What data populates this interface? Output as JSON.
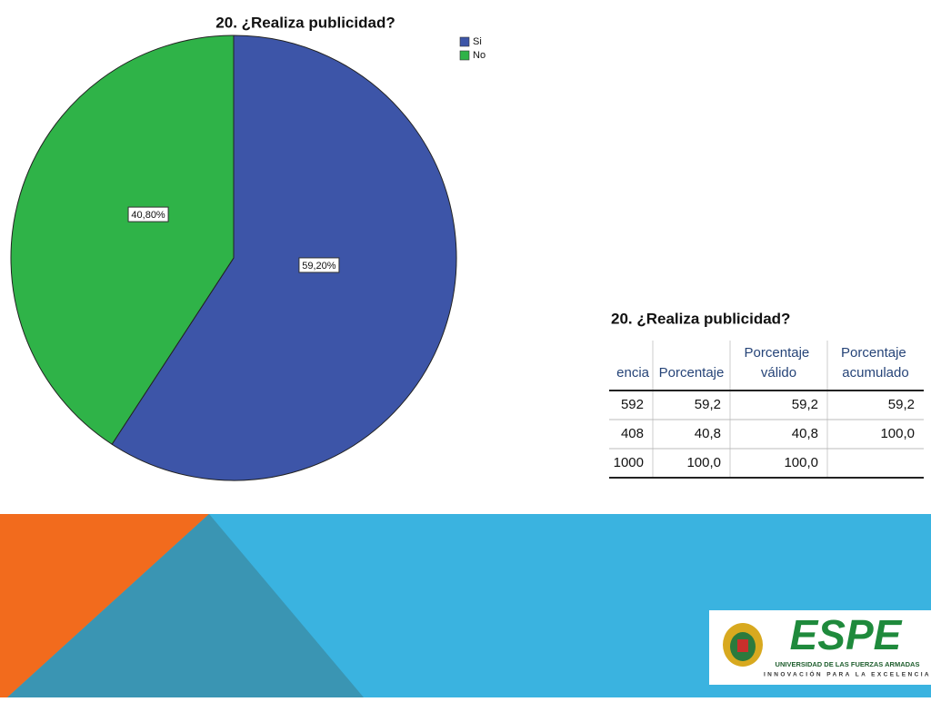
{
  "chart_data": {
    "type": "pie",
    "title": "20. ¿Realiza publicidad?",
    "categories": [
      "Si",
      "No"
    ],
    "series": [
      {
        "name": "Realiza publicidad",
        "values": [
          59.2,
          40.8
        ],
        "value_labels": [
          "59,20%",
          "40,80%"
        ],
        "colors": [
          "#3d55a8",
          "#2fb348"
        ]
      }
    ],
    "legend": "upper right"
  },
  "table": {
    "title": "20. ¿Realiza publicidad?",
    "header": [
      "encia",
      "Porcentaje",
      "Porcentaje válido",
      "Porcentaje acumulado"
    ],
    "rows": [
      [
        "592",
        "59,2",
        "59,2",
        "59,2"
      ],
      [
        "408",
        "40,8",
        "40,8",
        "100,0"
      ],
      [
        "1000",
        "100,0",
        "100,0",
        null
      ]
    ]
  },
  "logo": {
    "name": "ESPE",
    "university": "UNIVERSIDAD DE LAS FUERZAS ARMADAS",
    "motto": "INNOVACIÓN PARA LA EXCELENCIA"
  }
}
